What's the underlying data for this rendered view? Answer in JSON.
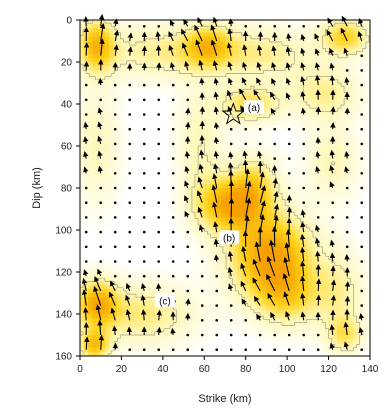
{
  "chart_data": {
    "type": "heatmap",
    "title": "",
    "xlabel": "Strike (km)",
    "ylabel": "Dip (km)",
    "xlim": [
      0,
      140
    ],
    "ylim": [
      0,
      160
    ],
    "y_inverted": true,
    "x_ticks": [
      "0",
      "20",
      "40",
      "60",
      "80",
      "100",
      "120",
      "140"
    ],
    "y_ticks": [
      "0",
      "20",
      "40",
      "60",
      "80",
      "100",
      "120",
      "140",
      "160"
    ],
    "grid": false,
    "colorscale": [
      "#ffffff",
      "#fff7b0",
      "#ffd21a",
      "#f5a000"
    ],
    "contour_color": "#8a8a78",
    "arrow_color": "#000000",
    "hypocenter": {
      "x": 74,
      "y": 45,
      "marker": "star"
    },
    "annotations": [
      {
        "text": "(a)",
        "x": 84,
        "y": 42
      },
      {
        "text": "(b)",
        "x": 72,
        "y": 104
      },
      {
        "text": "(c)",
        "x": 41,
        "y": 134
      }
    ],
    "slip_patches": [
      {
        "x": 92,
        "y": 112,
        "sx": 14,
        "sy": 14,
        "amp": 1.0
      },
      {
        "x": 72,
        "y": 88,
        "sx": 11,
        "sy": 9,
        "amp": 0.85
      },
      {
        "x": 84,
        "y": 78,
        "sx": 8,
        "sy": 10,
        "amp": 0.5
      },
      {
        "x": 100,
        "y": 132,
        "sx": 11,
        "sy": 10,
        "amp": 0.5
      },
      {
        "x": 82,
        "y": 40,
        "sx": 10,
        "sy": 6,
        "amp": 0.55
      },
      {
        "x": 8,
        "y": 12,
        "sx": 6,
        "sy": 9,
        "amp": 0.75
      },
      {
        "x": 40,
        "y": 15,
        "sx": 22,
        "sy": 9,
        "amp": 0.4
      },
      {
        "x": 62,
        "y": 12,
        "sx": 8,
        "sy": 7,
        "amp": 0.55
      },
      {
        "x": 88,
        "y": 16,
        "sx": 18,
        "sy": 9,
        "amp": 0.38
      },
      {
        "x": 128,
        "y": 8,
        "sx": 8,
        "sy": 6,
        "amp": 0.65
      },
      {
        "x": 118,
        "y": 35,
        "sx": 12,
        "sy": 9,
        "amp": 0.4
      },
      {
        "x": 122,
        "y": 68,
        "sx": 9,
        "sy": 12,
        "amp": 0.3
      },
      {
        "x": 8,
        "y": 135,
        "sx": 7,
        "sy": 8,
        "amp": 0.8
      },
      {
        "x": 7,
        "y": 155,
        "sx": 5,
        "sy": 5,
        "amp": 0.75
      },
      {
        "x": 30,
        "y": 140,
        "sx": 18,
        "sy": 10,
        "amp": 0.45
      },
      {
        "x": 8,
        "y": 60,
        "sx": 8,
        "sy": 20,
        "amp": 0.28
      },
      {
        "x": 58,
        "y": 60,
        "sx": 8,
        "sy": 20,
        "amp": 0.3
      },
      {
        "x": 125,
        "y": 130,
        "sx": 9,
        "sy": 14,
        "amp": 0.35
      },
      {
        "x": 128,
        "y": 150,
        "sx": 6,
        "sy": 6,
        "amp": 0.45
      }
    ],
    "grid_spacing_km": [
      7,
      7
    ]
  }
}
